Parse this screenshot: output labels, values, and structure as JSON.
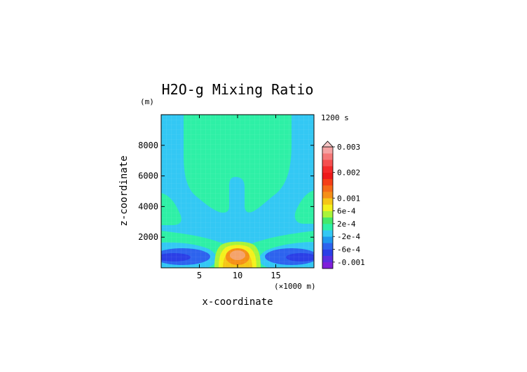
{
  "chart_data": {
    "type": "heatmap",
    "title": "H2O-g Mixing Ratio",
    "time_label": "1200 s",
    "xlabel": "x-coordinate",
    "ylabel": "z-coordinate",
    "x_unit": "(×1000 m)",
    "y_unit": "(m)",
    "xlim": [
      0,
      20
    ],
    "ylim": [
      0,
      10000
    ],
    "x_ticks": [
      5,
      10,
      15
    ],
    "y_ticks": [
      2000,
      4000,
      6000,
      8000
    ],
    "x_tick_labels": [
      "5",
      "10",
      "15"
    ],
    "y_tick_labels": [
      "2000",
      "4000",
      "6000",
      "8000"
    ],
    "colorbar": {
      "labels": [
        {
          "text": "0.003",
          "value": 0.003
        },
        {
          "text": "0.002",
          "value": 0.002
        },
        {
          "text": "0.001",
          "value": 0.001
        },
        {
          "text": "6e-4",
          "value": 0.0006
        },
        {
          "text": "2e-4",
          "value": 0.0002
        },
        {
          "text": "-2e-4",
          "value": -0.0002
        },
        {
          "text": "-6e-4",
          "value": -0.0006
        },
        {
          "text": "-0.001",
          "value": -0.001
        }
      ],
      "levels": [
        -0.0012,
        -0.001,
        -0.0008,
        -0.0006,
        -0.0004,
        -0.0002,
        0,
        0.0002,
        0.0004,
        0.0006,
        0.0008,
        0.001,
        0.00125,
        0.0015,
        0.00175,
        0.002,
        0.00225,
        0.0025,
        0.00275,
        0.003
      ],
      "colors": [
        "#7f1fd9",
        "#5a2ee0",
        "#2b3fe6",
        "#2d63ee",
        "#1f98ee",
        "#33c8f4",
        "#2ef0a6",
        "#44e96b",
        "#a8f43a",
        "#f4f11c",
        "#f5c617",
        "#f58f17",
        "#f56a17",
        "#f53f17",
        "#ee1a1a",
        "#f42a2a",
        "#f54f4f",
        "#f57878",
        "#f5a3a3"
      ],
      "extend_top": true,
      "triangle_color": "#f8c8c8"
    },
    "features": [
      {
        "region": "background",
        "level": "-2e-4"
      },
      {
        "region": "upper plume",
        "level": "0",
        "x_range": [
          2.8,
          16.8
        ],
        "z_range": [
          4000,
          10000
        ]
      },
      {
        "region": "central stem",
        "level": "0",
        "x_range": [
          8.7,
          10.7
        ],
        "z_range": [
          3000,
          5900
        ]
      },
      {
        "region": "core maximum",
        "level": "0.0015",
        "center": [
          9.8,
          1000
        ]
      },
      {
        "region": "left minimum",
        "level": "-6e-4",
        "center": [
          3,
          750
        ]
      },
      {
        "region": "right minimum",
        "level": "-6e-4",
        "center": [
          16.8,
          700
        ]
      }
    ]
  }
}
